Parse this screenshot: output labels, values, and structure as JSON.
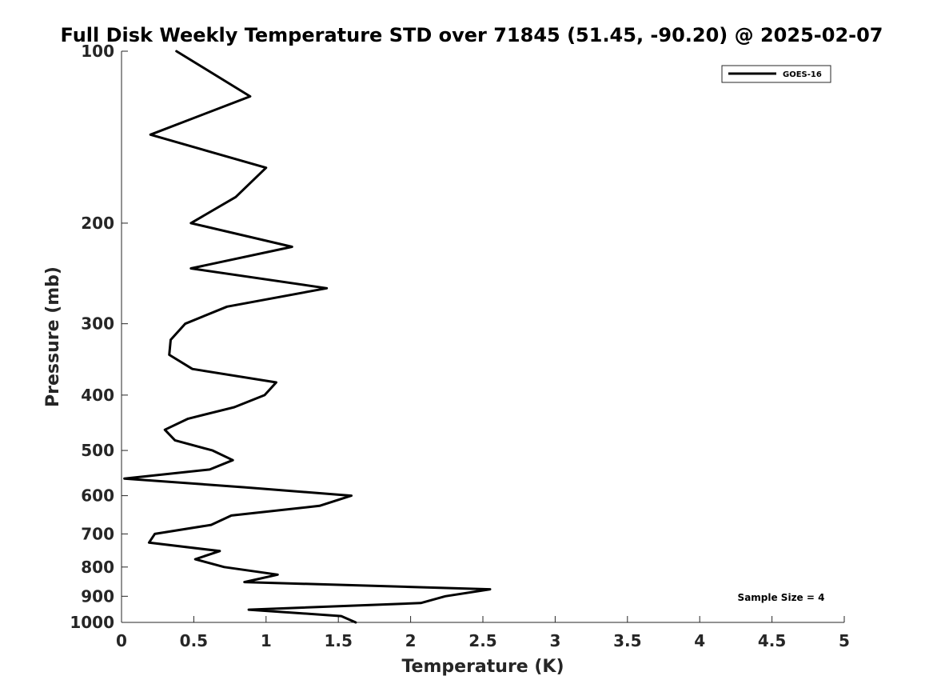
{
  "chart_data": {
    "type": "line",
    "title": "Full Disk Weekly Temperature STD over 71845 (51.45, -90.20) @ 2025-02-07",
    "xlabel": "Temperature (K)",
    "ylabel": "Pressure (mb)",
    "xlim": [
      0,
      5
    ],
    "ylim": [
      100,
      1000
    ],
    "yscale": "log",
    "y_reversed": true,
    "x_ticks": [
      0,
      0.5,
      1,
      1.5,
      2,
      2.5,
      3,
      3.5,
      4,
      4.5,
      5
    ],
    "x_tick_labels": [
      "0",
      "0.5",
      "1",
      "1.5",
      "2",
      "2.5",
      "3",
      "3.5",
      "4",
      "4.5",
      "5"
    ],
    "y_ticks": [
      100,
      200,
      300,
      400,
      500,
      600,
      700,
      800,
      900,
      1000
    ],
    "y_tick_labels": [
      "100",
      "200",
      "300",
      "400",
      "500",
      "600",
      "700",
      "800",
      "900",
      "1000"
    ],
    "grid": false,
    "legend": {
      "position": "top-right",
      "entries": [
        "GOES-16"
      ]
    },
    "annotation": "Sample Size = 4",
    "series": [
      {
        "name": "GOES-16",
        "color": "#000000",
        "x": [
          0.38,
          0.89,
          0.2,
          1.0,
          0.79,
          0.48,
          1.18,
          0.48,
          1.42,
          0.73,
          0.44,
          0.34,
          0.33,
          0.49,
          1.07,
          0.99,
          0.78,
          0.46,
          0.3,
          0.37,
          0.63,
          0.77,
          0.61,
          0.02,
          0.85,
          1.59,
          1.37,
          0.76,
          0.62,
          0.23,
          0.19,
          0.68,
          0.51,
          0.71,
          1.08,
          0.85,
          2.55,
          2.24,
          2.07,
          0.88,
          1.52,
          1.62
        ],
        "y": [
          100,
          120,
          140,
          160,
          180,
          200,
          220,
          240,
          260,
          280,
          300,
          320,
          340,
          360,
          380,
          400,
          420,
          440,
          460,
          480,
          500,
          520,
          540,
          560,
          580,
          600,
          625,
          650,
          675,
          700,
          725,
          750,
          775,
          800,
          825,
          850,
          875,
          900,
          925,
          950,
          975,
          1000
        ]
      }
    ]
  }
}
